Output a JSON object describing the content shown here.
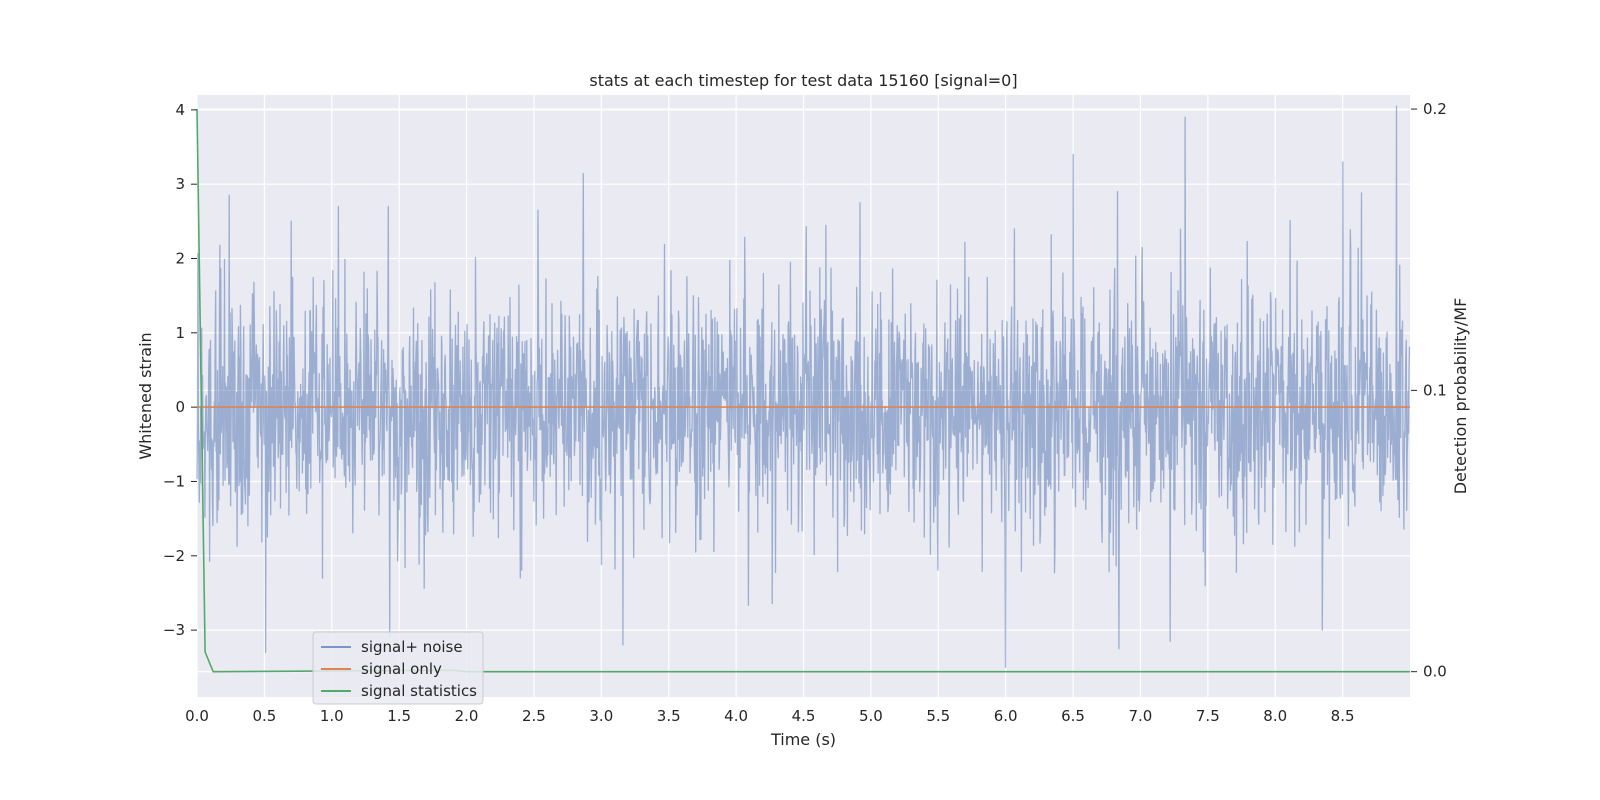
{
  "chart_data": {
    "type": "line",
    "title": "stats at each timestep for test data 15160 [signal=0]",
    "xlabel": "Time (s)",
    "ylabel": "Whitened strain",
    "y2label": "Detection probability/MF",
    "xlim": [
      0.0,
      9.0
    ],
    "ylim": [
      -3.9,
      4.2
    ],
    "y2lim": [
      -0.009,
      0.205
    ],
    "x_ticks": [
      0.0,
      0.5,
      1.0,
      1.5,
      2.0,
      2.5,
      3.0,
      3.5,
      4.0,
      4.5,
      5.0,
      5.5,
      6.0,
      6.5,
      7.0,
      7.5,
      8.0,
      8.5
    ],
    "x_tick_labels": [
      "0.0",
      "0.5",
      "1.0",
      "1.5",
      "2.0",
      "2.5",
      "3.0",
      "3.5",
      "4.0",
      "4.5",
      "5.0",
      "5.5",
      "6.0",
      "6.5",
      "7.0",
      "7.5",
      "8.0",
      "8.5"
    ],
    "y_ticks": [
      -3,
      -2,
      -1,
      0,
      1,
      2,
      3,
      4
    ],
    "y_tick_labels": [
      "−3",
      "−2",
      "−1",
      "0",
      "1",
      "2",
      "3",
      "4"
    ],
    "y2_ticks": [
      0.0,
      0.1,
      0.2
    ],
    "y2_tick_labels": [
      "0.0",
      "0.1",
      "0.2"
    ],
    "grid": true,
    "legend_position": "lower-left",
    "series": [
      {
        "name": "signal+ noise",
        "axis": "left",
        "color": "#4c72b0",
        "opacity": 0.5,
        "kind": "noise",
        "spread_std": 0.8,
        "spikes": [
          {
            "x": 0.24,
            "y": 2.85
          },
          {
            "x": 0.51,
            "y": -3.3
          },
          {
            "x": 0.7,
            "y": 2.5
          },
          {
            "x": 1.05,
            "y": 2.7
          },
          {
            "x": 1.42,
            "y": 2.7
          },
          {
            "x": 1.43,
            "y": -3.1
          },
          {
            "x": 2.53,
            "y": 2.65
          },
          {
            "x": 3.16,
            "y": -3.2
          },
          {
            "x": 4.92,
            "y": 2.75
          },
          {
            "x": 6.0,
            "y": -3.5
          },
          {
            "x": 6.5,
            "y": 3.4
          },
          {
            "x": 6.84,
            "y": -3.25
          },
          {
            "x": 6.83,
            "y": 2.9
          },
          {
            "x": 7.33,
            "y": 3.9
          },
          {
            "x": 7.22,
            "y": -3.15
          },
          {
            "x": 8.5,
            "y": 3.3
          },
          {
            "x": 8.9,
            "y": 4.05
          },
          {
            "x": 8.35,
            "y": -3.0
          }
        ]
      },
      {
        "name": "signal only",
        "axis": "left",
        "color": "#dd8452",
        "x": [
          0.0,
          9.0
        ],
        "y": [
          0.0,
          0.0
        ]
      },
      {
        "name": "signal statistics",
        "axis": "right",
        "color": "#55a868",
        "x": [
          0.0,
          0.06,
          0.12,
          1.9,
          2.0,
          9.0
        ],
        "y": [
          0.2,
          0.007,
          0.0,
          0.0005,
          0.0,
          0.0
        ]
      }
    ]
  }
}
